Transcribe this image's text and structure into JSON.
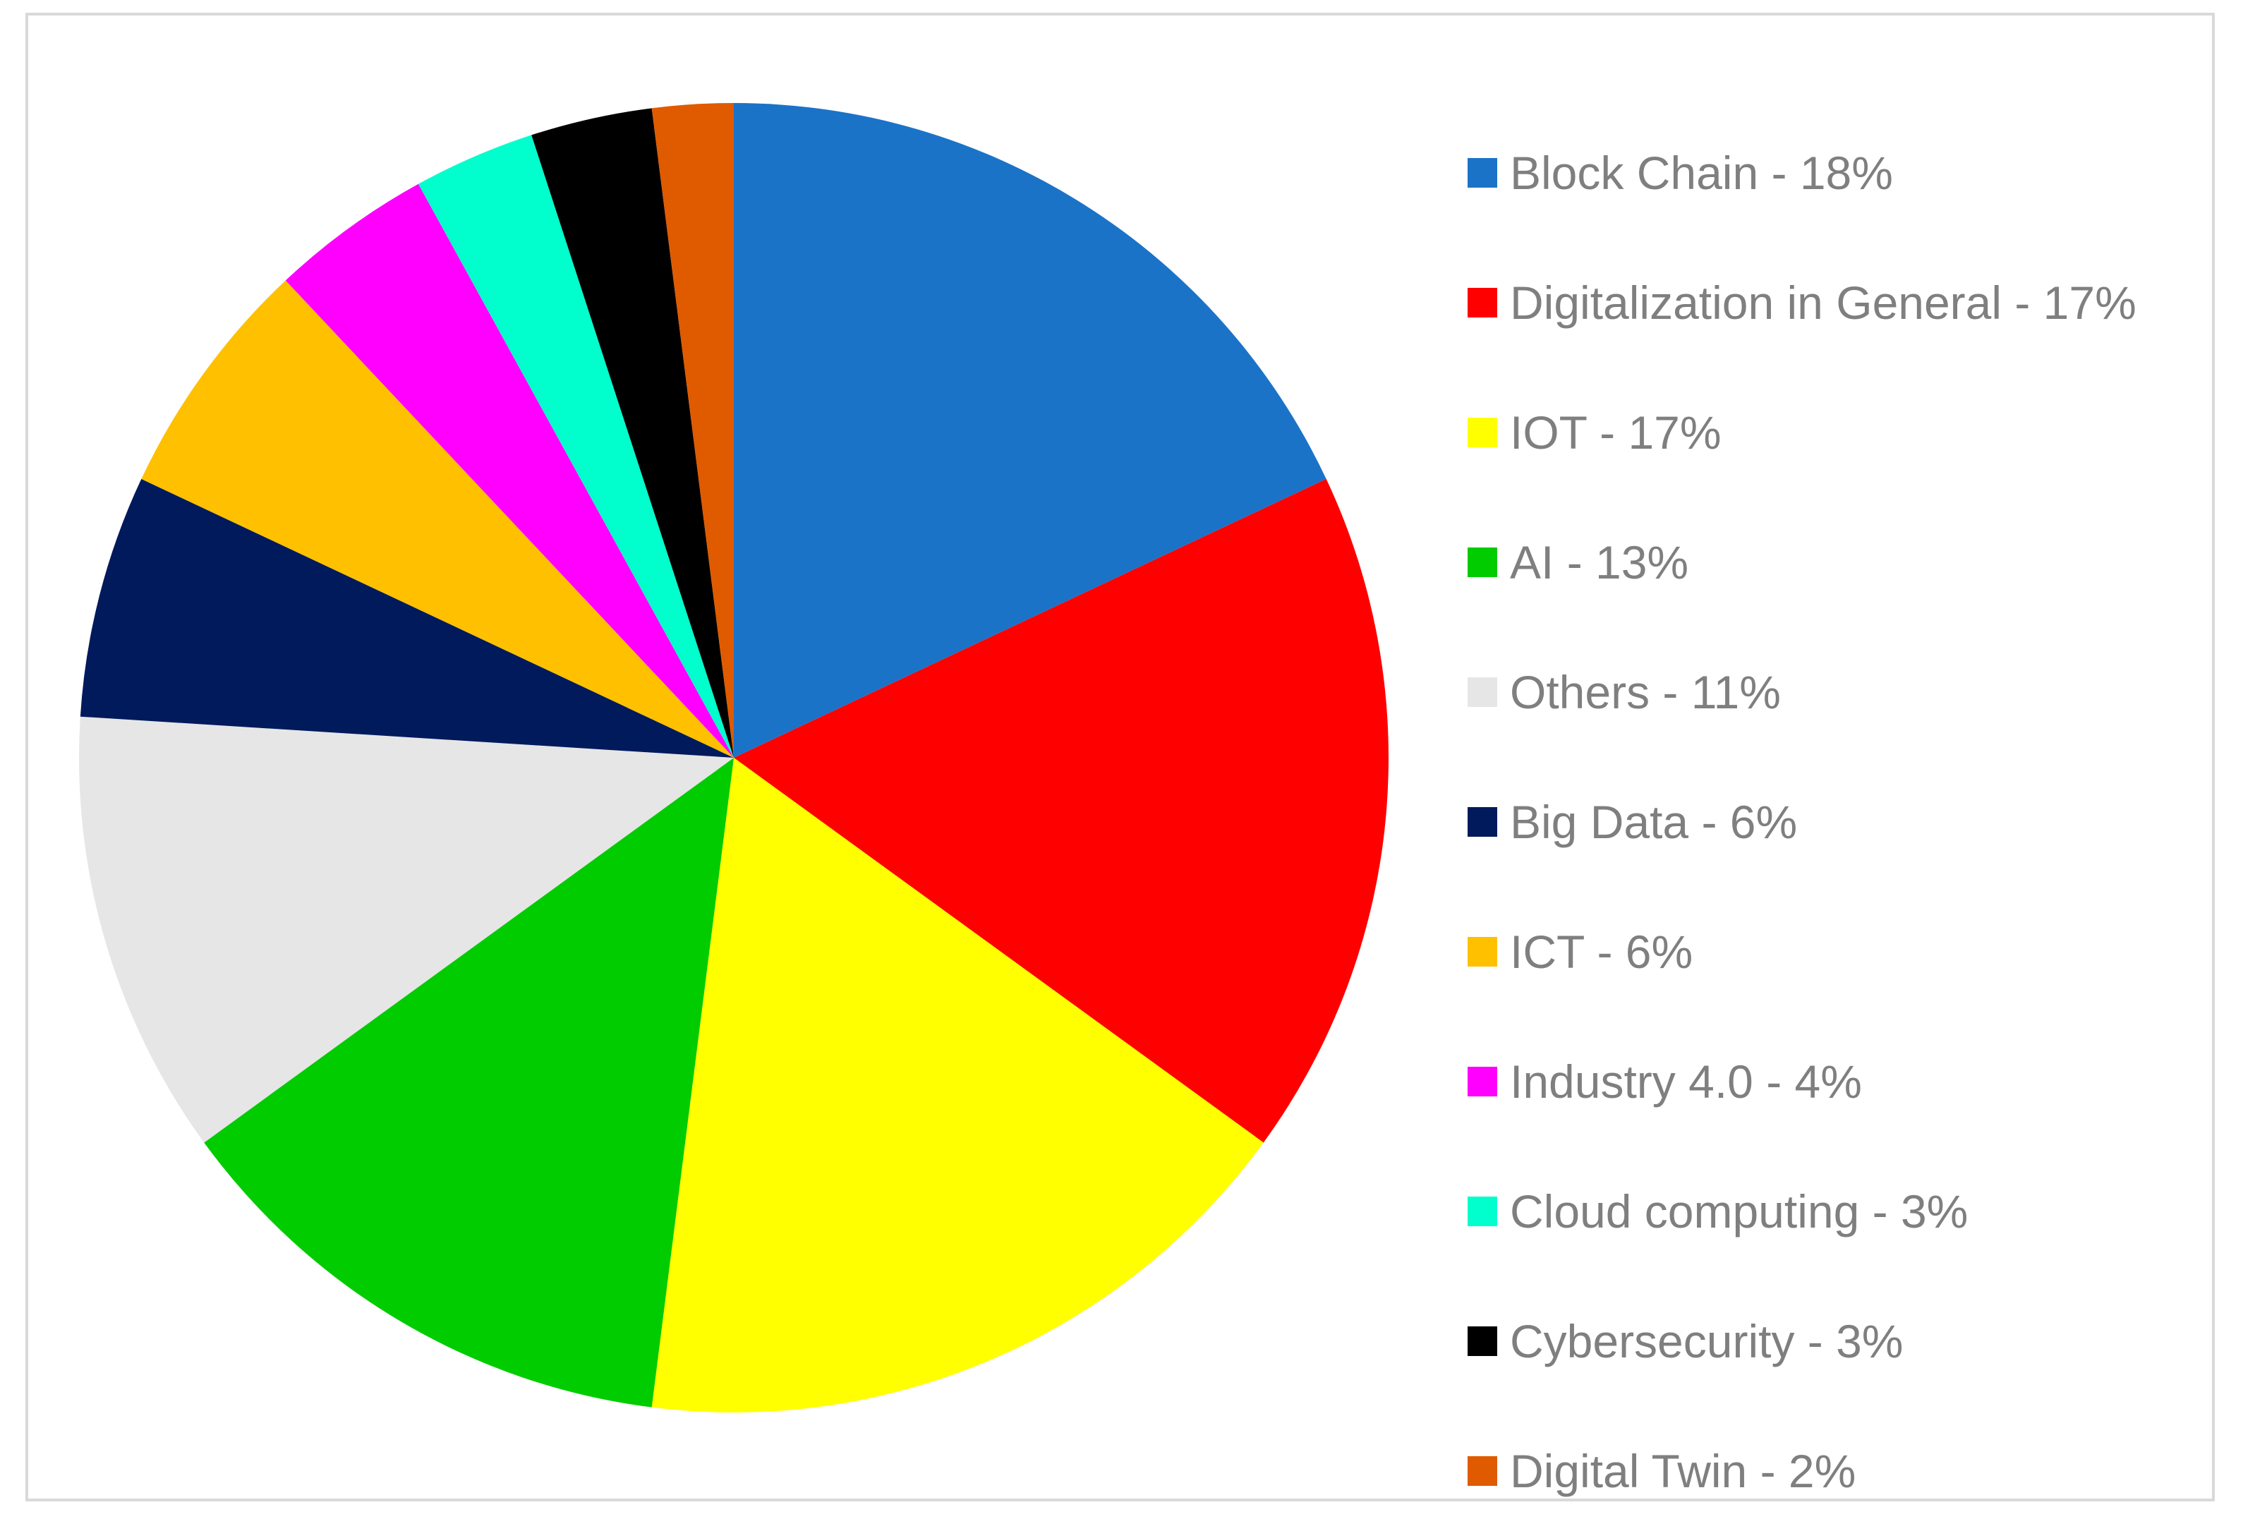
{
  "chart_data": {
    "type": "pie",
    "title": "",
    "legend_position": "right",
    "slices": [
      {
        "label": "Block Chain - 18%",
        "value": 18,
        "color": "#1b73c8"
      },
      {
        "label": "Digitalization in General - 17%",
        "value": 17,
        "color": "#ff0000"
      },
      {
        "label": "IOT - 17%",
        "value": 17,
        "color": "#ffff00"
      },
      {
        "label": "AI - 13%",
        "value": 13,
        "color": "#00cc00"
      },
      {
        "label": "Others - 11%",
        "value": 11,
        "color": "#e6e6e6"
      },
      {
        "label": "Big Data - 6%",
        "value": 6,
        "color": "#001a5c"
      },
      {
        "label": "ICT - 6%",
        "value": 6,
        "color": "#ffc000"
      },
      {
        "label": "Industry 4.0 - 4%",
        "value": 4,
        "color": "#ff00ff"
      },
      {
        "label": "Cloud computing - 3%",
        "value": 3,
        "color": "#00ffcc"
      },
      {
        "label": "Cybersecurity - 3%",
        "value": 3,
        "color": "#000000"
      },
      {
        "label": "Digital Twin - 2%",
        "value": 2,
        "color": "#e05a00"
      }
    ]
  }
}
